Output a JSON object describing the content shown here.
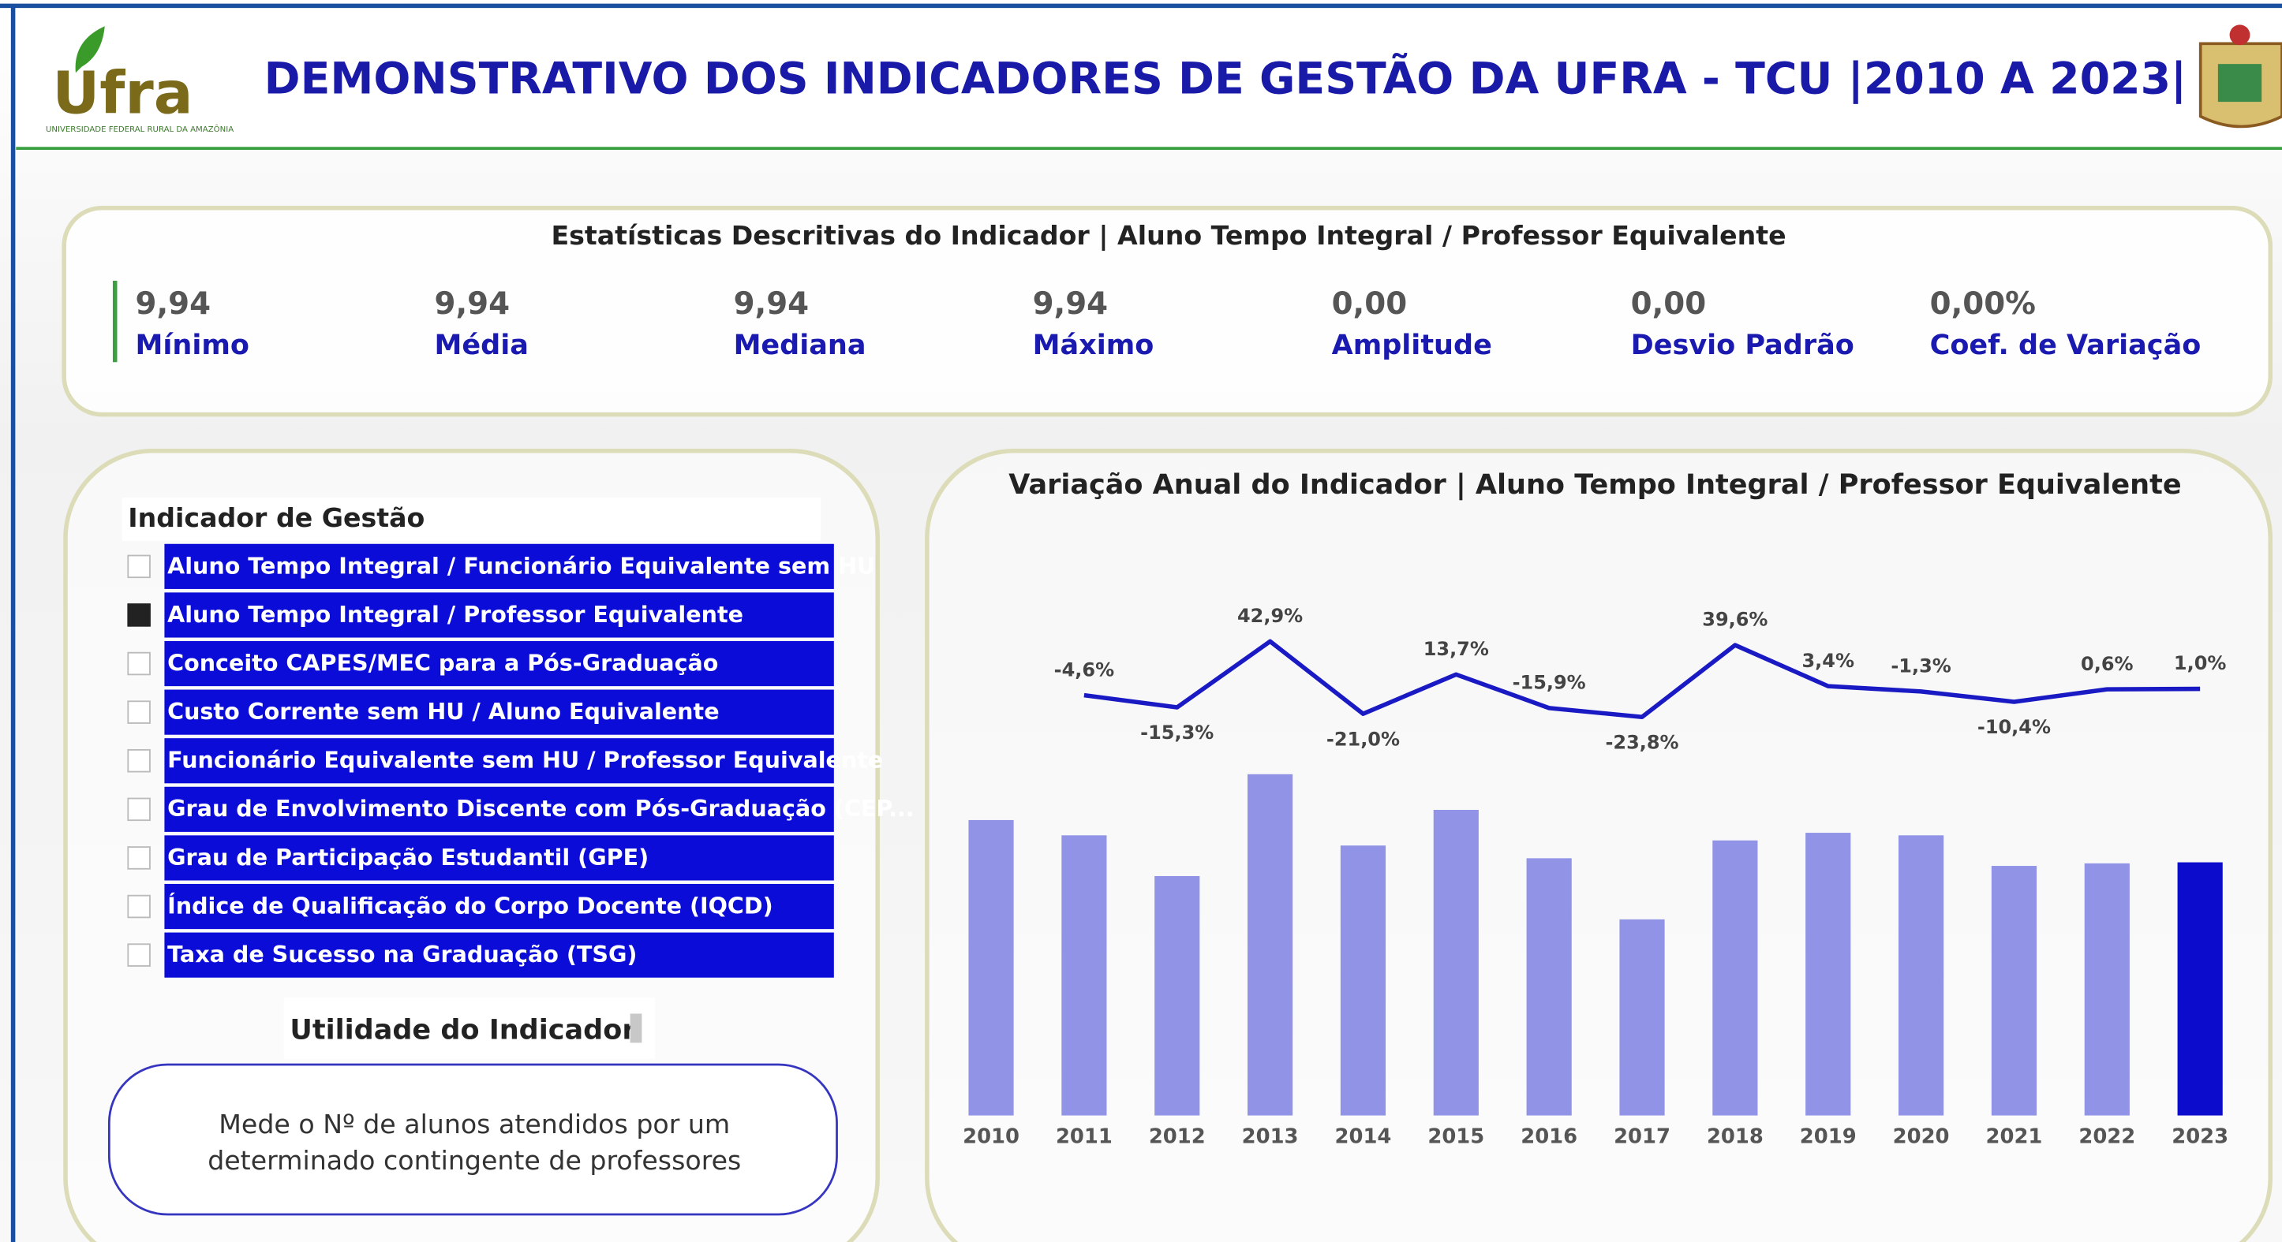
{
  "header": {
    "title": "DEMONSTRATIVO DOS INDICADORES DE GESTÃO DA UFRA - TCU |2010 A 2023|",
    "logo_text": "Ufra",
    "logo_subtext": "UNIVERSIDADE FEDERAL RURAL DA AMAZÔNIA"
  },
  "stats": {
    "title": "Estatísticas Descritivas do Indicador | Aluno Tempo Integral / Professor Equivalente",
    "items": [
      {
        "value": "9,94",
        "label": "Mínimo"
      },
      {
        "value": "9,94",
        "label": "Média"
      },
      {
        "value": "9,94",
        "label": "Mediana"
      },
      {
        "value": "9,94",
        "label": "Máximo"
      },
      {
        "value": "0,00",
        "label": "Amplitude"
      },
      {
        "value": "0,00",
        "label": "Desvio Padrão"
      },
      {
        "value": "0,00%",
        "label": "Coef. de Variação"
      }
    ]
  },
  "selector": {
    "title": "Indicador de Gestão",
    "items": [
      {
        "label": "Aluno Tempo Integral / Funcionário Equivalente sem HU",
        "checked": false
      },
      {
        "label": "Aluno Tempo Integral / Professor Equivalente",
        "checked": true
      },
      {
        "label": "Conceito CAPES/MEC para a Pós-Graduação",
        "checked": false
      },
      {
        "label": "Custo Corrente sem HU / Aluno Equivalente",
        "checked": false
      },
      {
        "label": "Funcionário Equivalente sem HU / Professor Equivalente",
        "checked": false
      },
      {
        "label": "Grau de Envolvimento Discente com Pós-Graduação (CEP...",
        "checked": false
      },
      {
        "label": "Grau de Participação Estudantil (GPE)",
        "checked": false
      },
      {
        "label": "Índice de Qualificação do Corpo Docente (IQCD)",
        "checked": false
      },
      {
        "label": "Taxa de Sucesso na Graduação (TSG)",
        "checked": false
      }
    ]
  },
  "utility": {
    "title": "Utilidade do Indicador",
    "lines": [
      "Mede o Nº de alunos atendidos por um",
      "determinado contingente de professores"
    ]
  },
  "chart_data": {
    "type": "bar",
    "title": "Variação Anual do Indicador | Aluno Tempo Integral / Professor Equivalente",
    "categories": [
      "2010",
      "2011",
      "2012",
      "2013",
      "2014",
      "2015",
      "2016",
      "2017",
      "2018",
      "2019",
      "2020",
      "2021",
      "2022",
      "2023"
    ],
    "series": [
      {
        "type": "bar",
        "colors": [
          "#9194e6",
          "#9194e6",
          "#9194e6",
          "#9194e6",
          "#9194e6",
          "#9194e6",
          "#9194e6",
          "#9194e6",
          "#9194e6",
          "#9194e6",
          "#9194e6",
          "#9194e6",
          "#9194e6",
          "#0c0ccc"
        ],
        "values": [
          11.6,
          11.0,
          9.4,
          13.4,
          10.6,
          12.0,
          10.1,
          7.7,
          10.8,
          11.1,
          11.0,
          9.8,
          9.9,
          9.94
        ]
      },
      {
        "type": "line",
        "color": "#1a1ac4",
        "values": [
          null,
          -4.6,
          -15.3,
          42.9,
          -21.0,
          13.7,
          -15.9,
          -23.8,
          39.6,
          3.4,
          -1.3,
          -10.4,
          0.6,
          1.0
        ],
        "value_labels": [
          null,
          "-4,6%",
          "-15,3%",
          "42,9%",
          "-21,0%",
          "13,7%",
          "-15,9%",
          "-23,8%",
          "39,6%",
          "3,4%",
          "-1,3%",
          "-10,4%",
          "0,6%",
          "1,0%"
        ]
      }
    ]
  }
}
